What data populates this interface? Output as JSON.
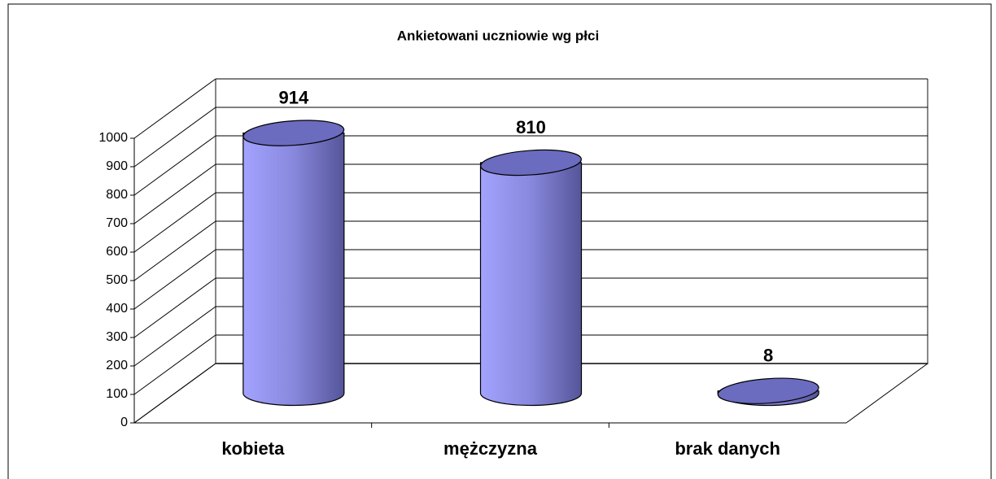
{
  "chart_data": {
    "type": "bar",
    "title": "Ankietowani uczniowie wg płci",
    "categories": [
      "kobieta",
      "mężczyzna",
      "brak danych"
    ],
    "values": [
      914,
      810,
      8
    ],
    "color": "#9999ff",
    "ylim": [
      0,
      1000
    ],
    "yticks": [
      0,
      100,
      200,
      300,
      400,
      500,
      600,
      700,
      800,
      900,
      1000
    ],
    "grid": true
  }
}
